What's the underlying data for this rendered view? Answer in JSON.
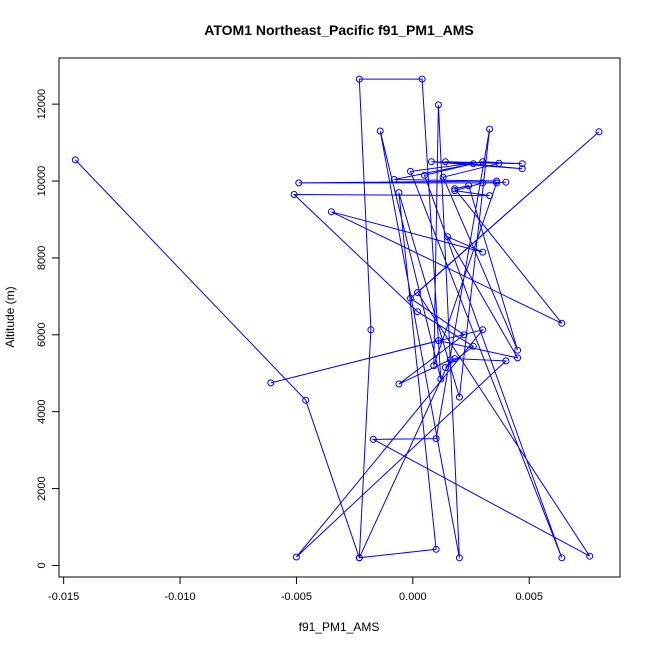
{
  "chart_data": {
    "type": "scatter",
    "title": "ATOM1 Northeast_Pacific f91_PM1_AMS",
    "xlabel": "f91_PM1_AMS",
    "ylabel": "Altitude (m)",
    "xlim": [
      -0.0152,
      0.0089
    ],
    "ylim": [
      -300,
      13200
    ],
    "xticks": [
      -0.015,
      -0.01,
      -0.005,
      0.0,
      0.005
    ],
    "xtick_labels": [
      "-0.015",
      "-0.010",
      "-0.005",
      "0.000",
      "0.005"
    ],
    "yticks": [
      0,
      2000,
      4000,
      6000,
      8000,
      10000,
      12000
    ],
    "ytick_labels": [
      "0",
      "2000",
      "4000",
      "6000",
      "8000",
      "10000",
      "12000"
    ],
    "grid": false,
    "legend": "none",
    "connected": true,
    "color": "#0000ff",
    "points": [
      {
        "x": -0.0145,
        "y": 10550
      },
      {
        "x": -0.0046,
        "y": 4300
      },
      {
        "x": -0.0023,
        "y": 200
      },
      {
        "x": 0.001,
        "y": 420
      },
      {
        "x": -0.0006,
        "y": 9700
      },
      {
        "x": 0.002,
        "y": 4380
      },
      {
        "x": 0.0033,
        "y": 11350
      },
      {
        "x": 0.001,
        "y": 3300
      },
      {
        "x": -0.0017,
        "y": 3280
      },
      {
        "x": 0.0076,
        "y": 240
      },
      {
        "x": 0.0002,
        "y": 7100
      },
      {
        "x": 0.008,
        "y": 11280
      },
      {
        "x": -0.0001,
        "y": 6950
      },
      {
        "x": 0.0022,
        "y": 6000
      },
      {
        "x": -0.0006,
        "y": 4720
      },
      {
        "x": 0.0016,
        "y": 5350
      },
      {
        "x": -0.0023,
        "y": 200
      },
      {
        "x": -0.0018,
        "y": 6130
      },
      {
        "x": -0.0023,
        "y": 12650
      },
      {
        "x": 0.0004,
        "y": 12650
      },
      {
        "x": 0.0012,
        "y": 4850
      },
      {
        "x": -0.0014,
        "y": 11300
      },
      {
        "x": 0.002,
        "y": 200
      },
      {
        "x": 0.0011,
        "y": 11980
      },
      {
        "x": 0.0009,
        "y": 5200
      },
      {
        "x": 0.0036,
        "y": 9950
      },
      {
        "x": -0.0049,
        "y": 9950
      },
      {
        "x": 0.0036,
        "y": 10000
      },
      {
        "x": -0.0008,
        "y": 10040
      },
      {
        "x": 0.0026,
        "y": 10450
      },
      {
        "x": 0.0005,
        "y": 10150
      },
      {
        "x": 0.0064,
        "y": 200
      },
      {
        "x": -0.0001,
        "y": 10250
      },
      {
        "x": 0.003,
        "y": 10500
      },
      {
        "x": 0.0047,
        "y": 10450
      },
      {
        "x": 0.0014,
        "y": 10500
      },
      {
        "x": 0.0047,
        "y": 10320
      },
      {
        "x": 0.0008,
        "y": 10500
      },
      {
        "x": 0.0037,
        "y": 10460
      },
      {
        "x": 0.0013,
        "y": 10100
      },
      {
        "x": 0.0045,
        "y": 5600
      },
      {
        "x": 0.0024,
        "y": 9880
      },
      {
        "x": 0.0018,
        "y": 9800
      },
      {
        "x": 0.0064,
        "y": 6300
      },
      {
        "x": -0.0035,
        "y": 9200
      },
      {
        "x": 0.003,
        "y": 8150
      },
      {
        "x": 0.0015,
        "y": 8550
      },
      {
        "x": 0.0045,
        "y": 5400
      },
      {
        "x": 0.0011,
        "y": 5850
      },
      {
        "x": -0.0061,
        "y": 4750
      },
      {
        "x": 0.003,
        "y": 6130
      },
      {
        "x": -0.005,
        "y": 220
      },
      {
        "x": 0.004,
        "y": 5320
      },
      {
        "x": 0.0018,
        "y": 5380
      },
      {
        "x": 0.0014,
        "y": 5150
      },
      {
        "x": 0.0026,
        "y": 5700
      },
      {
        "x": 0.0002,
        "y": 6600
      },
      {
        "x": -0.0051,
        "y": 9650
      },
      {
        "x": 0.0033,
        "y": 9620
      },
      {
        "x": 0.0018,
        "y": 9750
      },
      {
        "x": 0.003,
        "y": 9950
      },
      {
        "x": 0.004,
        "y": 9970
      }
    ]
  }
}
